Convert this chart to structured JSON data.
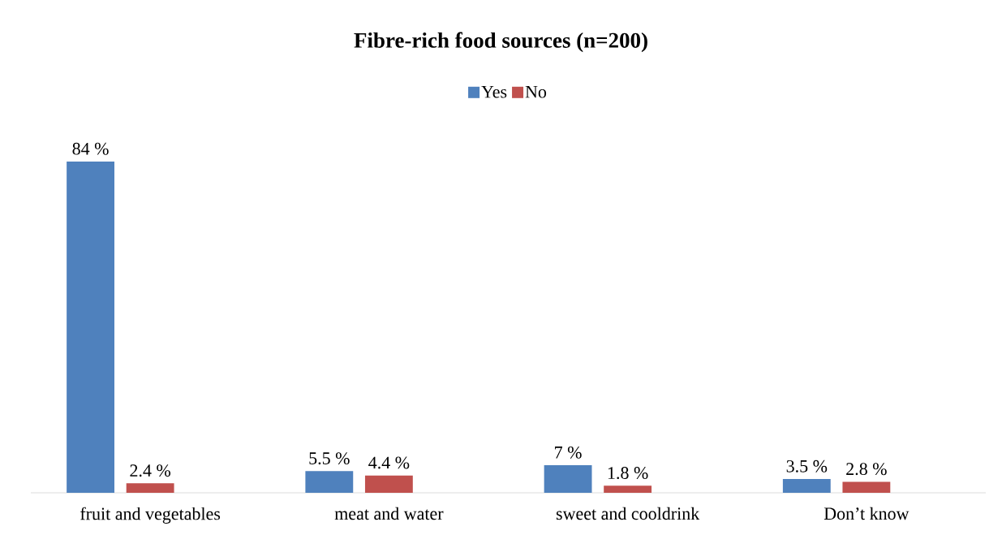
{
  "chart_data": {
    "type": "bar",
    "title": "**Fibre-rich food sources  (n=200)**",
    "categories": [
      "fruit and vegetables",
      "meat and water",
      "sweet and cooldrink",
      "Don’t know"
    ],
    "series": [
      {
        "name": "Yes",
        "color": "#4f81bd",
        "values": [
          84,
          5.5,
          7,
          3.5
        ],
        "value_labels": [
          "84 %",
          "5.5 %",
          "7 %",
          "3.5 %"
        ]
      },
      {
        "name": "No",
        "color": "#c0504d",
        "values": [
          2.4,
          4.4,
          1.8,
          2.8
        ],
        "value_labels": [
          "2.4 %",
          "4.4 %",
          "1.8 %",
          "2.8 %"
        ]
      }
    ],
    "legend": "top"
  }
}
